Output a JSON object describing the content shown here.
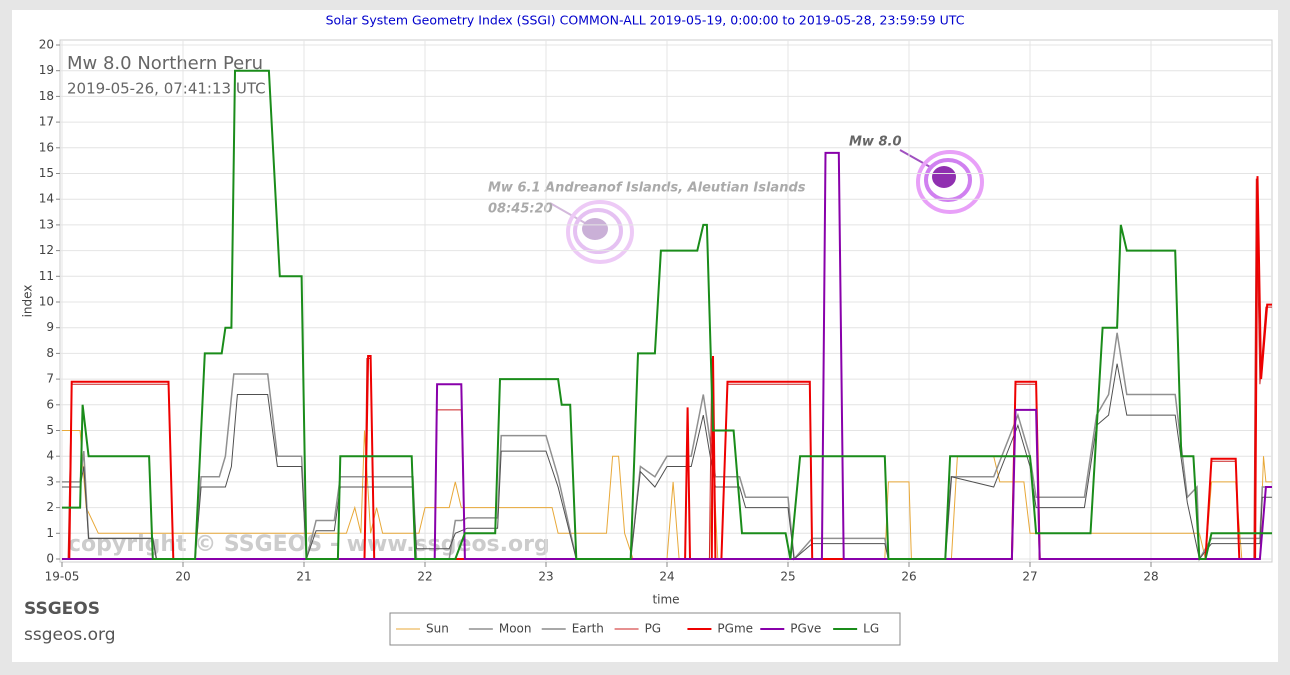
{
  "chart_data": {
    "type": "line",
    "title": "Solar System Geometry Index (SSGI) COMMON-ALL 2019-05-19,  0:00:00 to 2019-05-28, 23:59:59 UTC",
    "subtitle": "Mw 8.0 Northern Peru",
    "subtitle2": "2019-05-26, 07:41:13 UTC",
    "x_label": "time",
    "y_label": "index",
    "annotations": [
      "Mw 6.1 Andreanof Islands, Aleutian Islands",
      "08:45:20",
      "Mw 8.0"
    ],
    "watermark": "copyright © SSGEOS - www.ssgeos.org",
    "xlim": [
      19,
      29
    ],
    "ylim": [
      0,
      20
    ],
    "xticks": [
      {
        "value": 19,
        "label": "19-05"
      },
      20,
      21,
      22,
      23,
      24,
      25,
      26,
      27,
      28
    ],
    "yticks": [
      0,
      1,
      2,
      3,
      4,
      5,
      6,
      7,
      8,
      9,
      10,
      11,
      12,
      13,
      14,
      15,
      16,
      17,
      18,
      19,
      20
    ],
    "grid": true,
    "legend": "bottom",
    "series": [
      {
        "name": "Sun",
        "color": "#e8a838",
        "width": 1,
        "x": [
          19,
          19.15,
          19.2,
          19.3,
          21.35,
          21.42,
          21.47,
          21.5,
          21.55,
          21.6,
          21.65,
          21.95,
          22.0,
          22.2,
          22.25,
          22.3,
          23.05,
          23.1,
          23.5,
          23.55,
          23.6,
          23.65,
          23.72,
          24.0,
          24.05,
          24.1,
          24.35,
          24.38,
          24.42,
          25.8,
          25.83,
          26.0,
          26.02,
          26.35,
          26.4,
          26.7,
          26.75,
          26.95,
          27.0,
          28.4,
          28.45,
          28.5,
          28.7,
          28.75,
          28.9,
          28.93,
          28.95,
          29
        ],
        "values": [
          5,
          5,
          2,
          1,
          1,
          2,
          1,
          5,
          1,
          2,
          1,
          1,
          2,
          2,
          3,
          2,
          2,
          1,
          1,
          4,
          4,
          1,
          0,
          0,
          3,
          0,
          0,
          4,
          0,
          0,
          3,
          3,
          0,
          0,
          4,
          4,
          3,
          3,
          1,
          1,
          0,
          3,
          3,
          0,
          0,
          4,
          3,
          3
        ]
      },
      {
        "name": "Moon",
        "color": "#909090",
        "width": 1.5,
        "x": [
          19,
          19.15,
          19.18,
          19.22,
          19.75,
          19.78,
          20.1,
          20.15,
          20.3,
          20.35,
          20.42,
          20.7,
          20.78,
          20.98,
          21.02,
          21.1,
          21.25,
          21.3,
          21.9,
          21.93,
          22.2,
          22.25,
          22.3,
          22.35,
          22.6,
          22.63,
          23.0,
          23.1,
          23.25,
          23.7,
          23.78,
          23.9,
          24.0,
          24.2,
          24.3,
          24.4,
          24.6,
          24.65,
          25.0,
          25.05,
          25.2,
          25.8,
          25.83,
          26.3,
          26.35,
          26.7,
          26.9,
          27.0,
          27.05,
          27.45,
          27.55,
          27.65,
          27.72,
          27.8,
          28.2,
          28.3,
          28.38,
          28.4,
          28.5,
          28.9,
          28.92,
          29
        ],
        "values": [
          3,
          3,
          4.2,
          0.8,
          0.8,
          0,
          0,
          3.2,
          3.2,
          4,
          7.2,
          7.2,
          4,
          4,
          0,
          1.5,
          1.5,
          3.2,
          3.2,
          0,
          0,
          1.5,
          1.5,
          1.6,
          1.6,
          4.8,
          4.8,
          3.2,
          0,
          0,
          3.6,
          3.2,
          4,
          4,
          6.4,
          3.2,
          3.2,
          2.4,
          2.4,
          0,
          0.8,
          0.8,
          0,
          0,
          3.2,
          3.2,
          5.6,
          4,
          2.4,
          2.4,
          5.6,
          6.4,
          8.8,
          6.4,
          6.4,
          2.4,
          2.8,
          0,
          0.8,
          0.8,
          2.8,
          2.8
        ]
      },
      {
        "name": "Earth",
        "color": "#505050",
        "width": 1,
        "x": [
          19,
          19.15,
          19.18,
          19.22,
          19.75,
          19.78,
          20.1,
          20.15,
          20.35,
          20.4,
          20.45,
          20.7,
          20.78,
          20.98,
          21.02,
          21.1,
          21.25,
          21.3,
          21.9,
          21.93,
          22.2,
          22.25,
          22.35,
          22.6,
          22.63,
          23.0,
          23.1,
          23.25,
          23.7,
          23.78,
          23.9,
          24.0,
          24.2,
          24.3,
          24.4,
          24.6,
          24.65,
          25.0,
          25.05,
          25.2,
          25.8,
          25.83,
          26.3,
          26.35,
          26.7,
          26.9,
          27.0,
          27.05,
          27.45,
          27.55,
          27.65,
          27.72,
          27.8,
          28.2,
          28.3,
          28.4,
          28.5,
          28.9,
          28.92,
          29
        ],
        "values": [
          2.8,
          2.8,
          3.6,
          0.8,
          0.8,
          0,
          0,
          2.8,
          2.8,
          3.6,
          6.4,
          6.4,
          3.6,
          3.6,
          0,
          1.1,
          1.1,
          2.8,
          2.8,
          0.4,
          0.4,
          1,
          1.2,
          1.2,
          4.2,
          4.2,
          2.8,
          0,
          0,
          3.4,
          2.8,
          3.6,
          3.6,
          5.6,
          2.8,
          2.8,
          2,
          2,
          0,
          0.6,
          0.6,
          0,
          0,
          3.2,
          2.8,
          5.2,
          3.6,
          2,
          2,
          5.2,
          5.6,
          7.6,
          5.6,
          5.6,
          2.2,
          0,
          0.6,
          0.6,
          2.4,
          2.4
        ]
      },
      {
        "name": "PG",
        "color": "#cc2222",
        "width": 1,
        "x": [
          19,
          19.05,
          19.08,
          19.88,
          19.92,
          21.5,
          21.52,
          21.55,
          21.58,
          22.08,
          22.1,
          22.3,
          22.33,
          24.15,
          24.17,
          24.19,
          24.35,
          24.37,
          24.4,
          24.45,
          24.5,
          25.18,
          25.2,
          26.85,
          26.88,
          27.05,
          27.08,
          28.45,
          28.5,
          28.7,
          28.73,
          28.85,
          28.87,
          28.9,
          28.95,
          29
        ],
        "values": [
          0,
          0,
          6.8,
          6.8,
          0,
          0,
          7.8,
          7.8,
          0,
          0,
          5.8,
          5.8,
          0,
          0,
          5.8,
          0,
          0,
          7.8,
          0,
          0,
          6.8,
          6.8,
          0,
          0,
          6.8,
          6.8,
          0,
          0,
          3.8,
          3.8,
          0,
          0,
          14.8,
          6.8,
          9.8,
          9.8
        ]
      },
      {
        "name": "PGme",
        "color": "#ee0000",
        "width": 2,
        "x": [
          19,
          19.06,
          19.08,
          19.88,
          19.92,
          21.5,
          21.53,
          21.55,
          21.58,
          24.15,
          24.17,
          24.19,
          24.37,
          24.38,
          24.4,
          24.45,
          24.5,
          25.18,
          25.2,
          26.85,
          26.88,
          27.05,
          27.08,
          28.45,
          28.5,
          28.7,
          28.73,
          28.86,
          28.88,
          28.91,
          28.96,
          29
        ],
        "values": [
          0,
          0,
          6.9,
          6.9,
          0,
          0,
          7.9,
          7.9,
          0,
          0,
          5.9,
          0,
          0,
          7.9,
          0,
          0,
          6.9,
          6.9,
          0,
          0,
          6.9,
          6.9,
          0,
          0,
          3.9,
          3.9,
          0,
          0,
          14.9,
          7,
          9.9,
          9.9
        ]
      },
      {
        "name": "PGve",
        "color": "#8800aa",
        "width": 2,
        "x": [
          19,
          22.08,
          22.1,
          22.3,
          22.33,
          25.28,
          25.31,
          25.42,
          25.46,
          26.85,
          26.88,
          27.05,
          27.08,
          28.9,
          28.95,
          29
        ],
        "values": [
          0,
          0,
          6.8,
          6.8,
          0,
          0,
          15.8,
          15.8,
          0,
          0,
          5.8,
          5.8,
          0,
          0,
          2.8,
          2.8
        ]
      },
      {
        "name": "LG",
        "color": "#1a8c1a",
        "width": 2,
        "x": [
          19,
          19.15,
          19.17,
          19.22,
          19.72,
          19.75,
          20.1,
          20.18,
          20.32,
          20.35,
          20.4,
          20.43,
          20.71,
          20.8,
          20.98,
          21.02,
          21.28,
          21.3,
          21.89,
          21.92,
          22.2,
          22.25,
          22.33,
          22.58,
          22.62,
          23.1,
          23.13,
          23.2,
          23.25,
          23.7,
          23.76,
          23.9,
          23.95,
          24.25,
          24.3,
          24.33,
          24.38,
          24.55,
          24.62,
          24.98,
          25.02,
          25.1,
          25.8,
          25.83,
          26.3,
          26.34,
          26.88,
          27.0,
          27.05,
          27.5,
          27.6,
          27.72,
          27.75,
          27.8,
          28.2,
          28.25,
          28.35,
          28.4,
          28.45,
          28.5,
          29
        ],
        "values": [
          2,
          2,
          6,
          4,
          4,
          0,
          0,
          8,
          8,
          9,
          9,
          19,
          19,
          11,
          11,
          0,
          0,
          4,
          4,
          0,
          0,
          0,
          1,
          1,
          7,
          7,
          6,
          6,
          0,
          0,
          8,
          8,
          12,
          12,
          13,
          13,
          5,
          5,
          1,
          1,
          0,
          4,
          4,
          0,
          0,
          4,
          4,
          4,
          1,
          1,
          9,
          9,
          13,
          12,
          12,
          4,
          4,
          0,
          0,
          1,
          1
        ]
      }
    ]
  },
  "branding": {
    "name": "SSGEOS",
    "url": "ssgeos.org"
  }
}
